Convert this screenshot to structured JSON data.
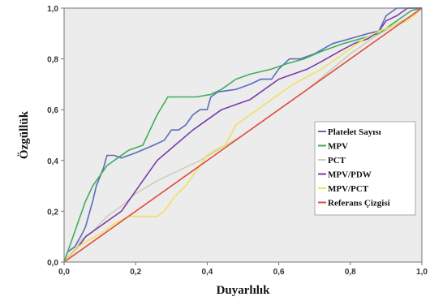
{
  "chart_data": {
    "type": "line",
    "title": "",
    "xlabel": "Duyarlılık",
    "ylabel": "Özgüllük",
    "xlim": [
      0,
      1
    ],
    "ylim": [
      0,
      1
    ],
    "x_ticks": [
      "0,0",
      "0,2",
      "0,4",
      "0,6",
      "0,8",
      "1,0"
    ],
    "y_ticks": [
      "0,0",
      "0,2",
      "0,4",
      "0,6",
      "0,8",
      "1,0"
    ],
    "grid": false,
    "legend_position": "right-middle",
    "plot_background": "#ececec",
    "series": [
      {
        "name": "Platelet Sayısı",
        "color": "#5b6bc0",
        "points": [
          [
            0,
            0
          ],
          [
            0.01,
            0.04
          ],
          [
            0.03,
            0.06
          ],
          [
            0.05,
            0.11
          ],
          [
            0.06,
            0.14
          ],
          [
            0.08,
            0.24
          ],
          [
            0.09,
            0.3
          ],
          [
            0.11,
            0.37
          ],
          [
            0.12,
            0.42
          ],
          [
            0.14,
            0.42
          ],
          [
            0.16,
            0.41
          ],
          [
            0.2,
            0.43
          ],
          [
            0.25,
            0.46
          ],
          [
            0.28,
            0.48
          ],
          [
            0.3,
            0.52
          ],
          [
            0.32,
            0.52
          ],
          [
            0.34,
            0.54
          ],
          [
            0.36,
            0.58
          ],
          [
            0.38,
            0.6
          ],
          [
            0.4,
            0.6
          ],
          [
            0.41,
            0.65
          ],
          [
            0.43,
            0.67
          ],
          [
            0.48,
            0.68
          ],
          [
            0.52,
            0.7
          ],
          [
            0.55,
            0.72
          ],
          [
            0.58,
            0.72
          ],
          [
            0.6,
            0.76
          ],
          [
            0.63,
            0.8
          ],
          [
            0.66,
            0.8
          ],
          [
            0.7,
            0.82
          ],
          [
            0.75,
            0.86
          ],
          [
            0.8,
            0.88
          ],
          [
            0.85,
            0.9
          ],
          [
            0.88,
            0.91
          ],
          [
            0.9,
            0.97
          ],
          [
            0.93,
            1
          ],
          [
            1,
            1
          ]
        ]
      },
      {
        "name": "MPV",
        "color": "#3fae5a",
        "points": [
          [
            0,
            0
          ],
          [
            0.02,
            0.08
          ],
          [
            0.04,
            0.16
          ],
          [
            0.06,
            0.24
          ],
          [
            0.08,
            0.3
          ],
          [
            0.1,
            0.34
          ],
          [
            0.12,
            0.38
          ],
          [
            0.15,
            0.41
          ],
          [
            0.18,
            0.44
          ],
          [
            0.22,
            0.46
          ],
          [
            0.26,
            0.58
          ],
          [
            0.29,
            0.65
          ],
          [
            0.37,
            0.65
          ],
          [
            0.41,
            0.66
          ],
          [
            0.44,
            0.68
          ],
          [
            0.48,
            0.72
          ],
          [
            0.52,
            0.74
          ],
          [
            0.58,
            0.76
          ],
          [
            0.62,
            0.78
          ],
          [
            0.67,
            0.8
          ],
          [
            0.72,
            0.83
          ],
          [
            0.78,
            0.86
          ],
          [
            0.83,
            0.88
          ],
          [
            0.88,
            0.9
          ],
          [
            0.93,
            0.95
          ],
          [
            0.97,
            0.99
          ],
          [
            1,
            1
          ]
        ]
      },
      {
        "name": "PCT",
        "color": "#c8d2b4",
        "points": [
          [
            0,
            0
          ],
          [
            0.03,
            0.05
          ],
          [
            0.05,
            0.09
          ],
          [
            0.08,
            0.12
          ],
          [
            0.12,
            0.18
          ],
          [
            0.16,
            0.22
          ],
          [
            0.2,
            0.27
          ],
          [
            0.26,
            0.32
          ],
          [
            0.32,
            0.36
          ],
          [
            0.38,
            0.4
          ],
          [
            0.44,
            0.45
          ],
          [
            0.5,
            0.5
          ],
          [
            0.56,
            0.56
          ],
          [
            0.62,
            0.62
          ],
          [
            0.68,
            0.68
          ],
          [
            0.74,
            0.75
          ],
          [
            0.8,
            0.82
          ],
          [
            0.86,
            0.88
          ],
          [
            0.92,
            0.93
          ],
          [
            0.97,
            0.97
          ],
          [
            1,
            1
          ]
        ]
      },
      {
        "name": "MPV/PDW",
        "color": "#7b3aa8",
        "points": [
          [
            0,
            0
          ],
          [
            0.02,
            0.03
          ],
          [
            0.04,
            0.06
          ],
          [
            0.06,
            0.1
          ],
          [
            0.08,
            0.12
          ],
          [
            0.12,
            0.16
          ],
          [
            0.16,
            0.2
          ],
          [
            0.19,
            0.26
          ],
          [
            0.22,
            0.32
          ],
          [
            0.26,
            0.4
          ],
          [
            0.31,
            0.46
          ],
          [
            0.36,
            0.52
          ],
          [
            0.4,
            0.56
          ],
          [
            0.44,
            0.6
          ],
          [
            0.48,
            0.62
          ],
          [
            0.52,
            0.64
          ],
          [
            0.55,
            0.67
          ],
          [
            0.6,
            0.72
          ],
          [
            0.64,
            0.74
          ],
          [
            0.68,
            0.76
          ],
          [
            0.72,
            0.79
          ],
          [
            0.77,
            0.83
          ],
          [
            0.81,
            0.86
          ],
          [
            0.85,
            0.88
          ],
          [
            0.88,
            0.91
          ],
          [
            0.9,
            0.95
          ],
          [
            0.93,
            0.97
          ],
          [
            0.96,
            1
          ],
          [
            1,
            1
          ]
        ]
      },
      {
        "name": "MPV/PCT",
        "color": "#f0e060",
        "points": [
          [
            0,
            0
          ],
          [
            0.02,
            0.03
          ],
          [
            0.04,
            0.06
          ],
          [
            0.06,
            0.08
          ],
          [
            0.1,
            0.11
          ],
          [
            0.14,
            0.15
          ],
          [
            0.18,
            0.18
          ],
          [
            0.22,
            0.18
          ],
          [
            0.26,
            0.18
          ],
          [
            0.28,
            0.2
          ],
          [
            0.31,
            0.26
          ],
          [
            0.34,
            0.3
          ],
          [
            0.38,
            0.38
          ],
          [
            0.4,
            0.42
          ],
          [
            0.42,
            0.44
          ],
          [
            0.45,
            0.46
          ],
          [
            0.48,
            0.54
          ],
          [
            0.52,
            0.58
          ],
          [
            0.56,
            0.62
          ],
          [
            0.6,
            0.66
          ],
          [
            0.64,
            0.7
          ],
          [
            0.68,
            0.73
          ],
          [
            0.72,
            0.76
          ],
          [
            0.76,
            0.8
          ],
          [
            0.8,
            0.84
          ],
          [
            0.84,
            0.88
          ],
          [
            0.88,
            0.91
          ],
          [
            0.92,
            0.93
          ],
          [
            0.96,
            0.95
          ],
          [
            1,
            1
          ]
        ]
      },
      {
        "name": "Referans Çizgisi",
        "color": "#e24a3c",
        "points": [
          [
            0,
            0
          ],
          [
            1,
            1
          ]
        ]
      }
    ]
  }
}
